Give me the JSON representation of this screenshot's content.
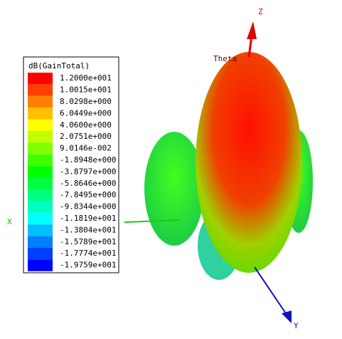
{
  "legend": {
    "title": "dB(GainTotal)",
    "labels": [
      "1.2000e+001",
      "1.0015e+001",
      "8.0298e+000",
      "6.0449e+000",
      "4.0600e+000",
      "2.0751e+000",
      "9.0146e-002",
      "-1.8948e+000",
      "-3.8797e+000",
      "-5.8646e+000",
      "-7.8495e+000",
      "-9.8344e+000",
      "-1.1819e+001",
      "-1.3804e+001",
      "-1.5789e+001",
      "-1.7774e+001",
      "-1.9759e+001"
    ],
    "colors": [
      "#ff0000",
      "#ff4000",
      "#ff8000",
      "#ffbf00",
      "#ffff00",
      "#bfff00",
      "#80ff00",
      "#40ff00",
      "#00ff00",
      "#00ff40",
      "#00ff80",
      "#00ffbf",
      "#00ffff",
      "#00bfff",
      "#0080ff",
      "#0040ff",
      "#0000ff"
    ]
  },
  "axes": {
    "z": "Z",
    "x": "X",
    "y": "Y",
    "theta": "Theta"
  }
}
